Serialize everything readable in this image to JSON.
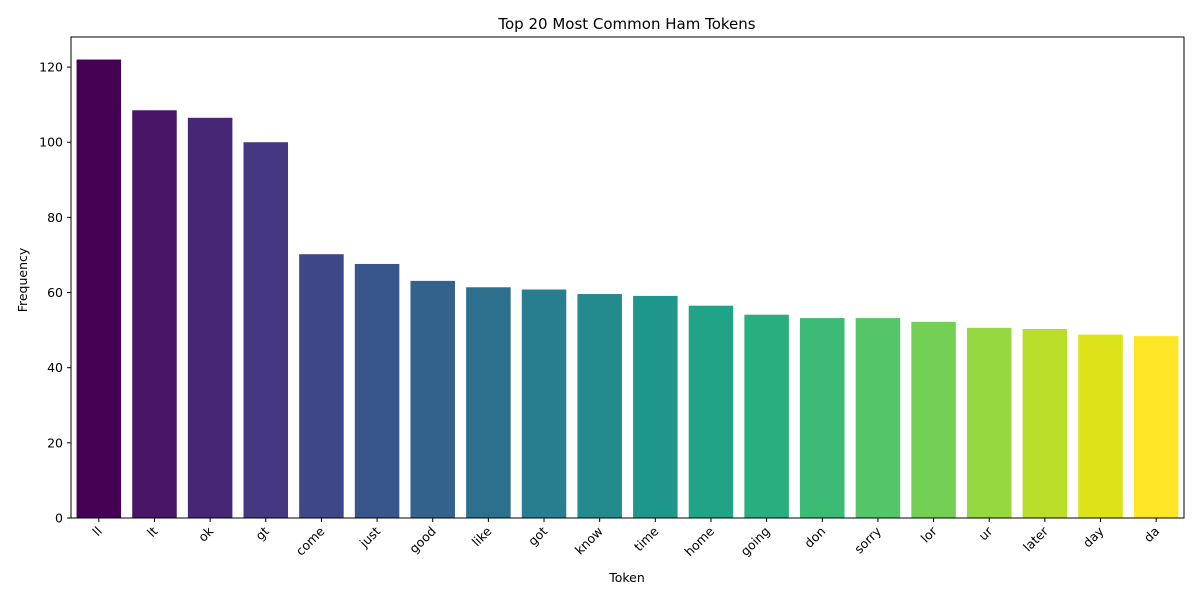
{
  "chart_data": {
    "type": "bar",
    "title": "Top 20 Most Common Ham Tokens",
    "xlabel": "Token",
    "ylabel": "Frequency",
    "categories": [
      "ll",
      "lt",
      "ok",
      "gt",
      "come",
      "just",
      "good",
      "like",
      "got",
      "know",
      "time",
      "home",
      "going",
      "don",
      "sorry",
      "lor",
      "ur",
      "later",
      "day",
      "da"
    ],
    "values": [
      122,
      108.5,
      106.5,
      100,
      70.2,
      67.6,
      63.1,
      61.4,
      60.8,
      59.6,
      59.1,
      56.5,
      54.1,
      53.2,
      53.2,
      52.2,
      50.6,
      50.3,
      48.8,
      48.4
    ],
    "ylim": [
      0,
      128
    ],
    "yticks": [
      0,
      20,
      40,
      60,
      80,
      100,
      120
    ],
    "grid": false,
    "colors": [
      "#440154",
      "#481567",
      "#482677",
      "#453781",
      "#404788",
      "#39568c",
      "#33638d",
      "#2d708e",
      "#287d8e",
      "#238a8d",
      "#1f968b",
      "#20a387",
      "#29af7f",
      "#3cbb75",
      "#55c667",
      "#73d055",
      "#95d840",
      "#b8de29",
      "#dce319",
      "#fde725"
    ],
    "palette": "viridis"
  }
}
